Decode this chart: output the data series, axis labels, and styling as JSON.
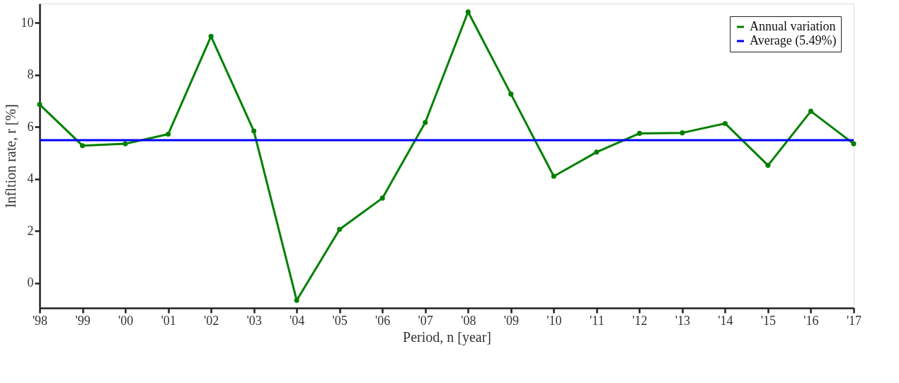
{
  "chart_data": {
    "type": "line",
    "xlabel": "Period, n [year]",
    "ylabel": "Infltion rate, r [%]",
    "categories": [
      "'98",
      "'99",
      "'00",
      "'01",
      "'02",
      "'03",
      "'04",
      "'05",
      "'06",
      "'07",
      "'08",
      "'09",
      "'10",
      "'11",
      "'12",
      "'13",
      "'14",
      "'15",
      "'16",
      "'17"
    ],
    "series": [
      {
        "name": "Annual variation",
        "color": "#008000",
        "values": [
          6.86,
          5.28,
          5.35,
          5.72,
          9.48,
          5.84,
          -0.67,
          2.06,
          3.26,
          6.17,
          10.42,
          7.26,
          4.1,
          5.03,
          5.75,
          5.77,
          6.13,
          4.52,
          6.6,
          5.35
        ]
      }
    ],
    "ref_lines": [
      {
        "axis": "y",
        "value": 5.49,
        "label": "Average (5.49%)",
        "color": "#0000ff"
      }
    ],
    "ylim": [
      -0.96,
      10.74
    ],
    "yticks": [
      0,
      2,
      4,
      6,
      8,
      10
    ],
    "marker": "circle",
    "line_style": "solid",
    "grid": false,
    "legend": "top right"
  }
}
